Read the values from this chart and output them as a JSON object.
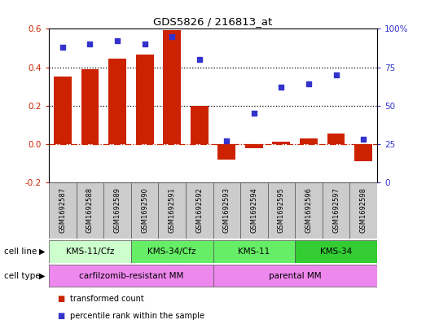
{
  "title": "GDS5826 / 216813_at",
  "samples": [
    "GSM1692587",
    "GSM1692588",
    "GSM1692589",
    "GSM1692590",
    "GSM1692591",
    "GSM1692592",
    "GSM1692593",
    "GSM1692594",
    "GSM1692595",
    "GSM1692596",
    "GSM1692597",
    "GSM1692598"
  ],
  "bar_values": [
    0.35,
    0.39,
    0.445,
    0.465,
    0.595,
    0.2,
    -0.08,
    -0.02,
    0.01,
    0.03,
    0.055,
    -0.09
  ],
  "dot_values": [
    88,
    90,
    92,
    90,
    95,
    80,
    27,
    45,
    62,
    64,
    70,
    28
  ],
  "bar_color": "#cc2200",
  "dot_color": "#3333cc",
  "ylim_left": [
    -0.2,
    0.6
  ],
  "ylim_right": [
    0,
    100
  ],
  "yticks_left": [
    -0.2,
    0.0,
    0.2,
    0.4,
    0.6
  ],
  "yticks_right": [
    0,
    25,
    50,
    75,
    100
  ],
  "yticklabels_right": [
    "0",
    "25",
    "50",
    "75",
    "100%"
  ],
  "zero_line_color": "#cc2200",
  "dotted_line_color": "#000000",
  "cell_line_groups": [
    {
      "label": "KMS-11/Cfz",
      "start": 0,
      "end": 3,
      "color": "#ccffcc"
    },
    {
      "label": "KMS-34/Cfz",
      "start": 3,
      "end": 6,
      "color": "#66ee66"
    },
    {
      "label": "KMS-11",
      "start": 6,
      "end": 9,
      "color": "#66ee66"
    },
    {
      "label": "KMS-34",
      "start": 9,
      "end": 12,
      "color": "#33cc33"
    }
  ],
  "cell_type_groups": [
    {
      "label": "carfilzomib-resistant MM",
      "start": 0,
      "end": 6,
      "color": "#ee88ee"
    },
    {
      "label": "parental MM",
      "start": 6,
      "end": 12,
      "color": "#ee88ee"
    }
  ],
  "cell_line_label": "cell line",
  "cell_type_label": "cell type",
  "legend_items": [
    {
      "label": "transformed count",
      "color": "#cc2200",
      "marker": "s"
    },
    {
      "label": "percentile rank within the sample",
      "color": "#3333cc",
      "marker": "s"
    }
  ],
  "sample_box_color": "#cccccc",
  "bg_color": "#ffffff"
}
